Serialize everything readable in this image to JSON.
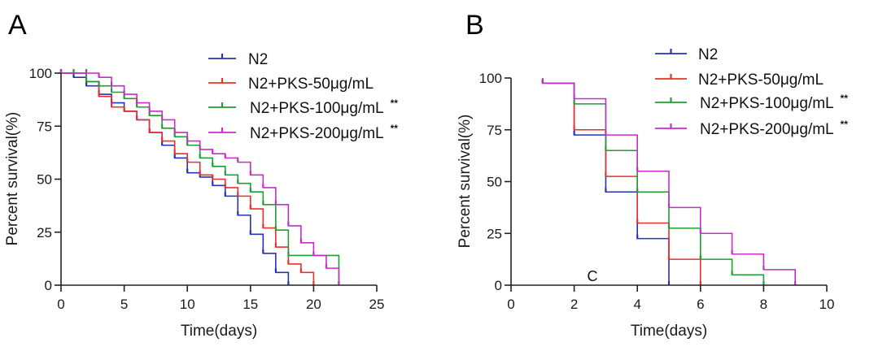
{
  "chart_data": [
    {
      "panel": "A",
      "type": "line",
      "subtype": "kaplan-meier-step",
      "title": "",
      "xlabel": "Time(days)",
      "ylabel": "Percent survival(%)",
      "xlim": [
        0,
        25
      ],
      "ylim": [
        0,
        100
      ],
      "xticks": [
        0,
        5,
        10,
        15,
        20,
        25
      ],
      "yticks": [
        0,
        25,
        50,
        75,
        100
      ],
      "grid": false,
      "legend_position": "top-right",
      "series": [
        {
          "name": "N2",
          "color": "#2633b8",
          "sig": "",
          "x": [
            0,
            1,
            2,
            3,
            4,
            5,
            6,
            7,
            8,
            9,
            10,
            11,
            12,
            13,
            14,
            15,
            16,
            17,
            18
          ],
          "y": [
            100,
            98,
            94,
            90,
            86,
            82,
            78,
            72,
            66,
            60,
            53,
            51,
            47,
            42,
            33,
            24,
            15,
            6,
            0
          ]
        },
        {
          "name": "N2+PKS-50μg/mL",
          "color": "#e8302d",
          "sig": "",
          "x": [
            0,
            2,
            3,
            4,
            5,
            6,
            7,
            8,
            9,
            10,
            11,
            12,
            13,
            14,
            15,
            16,
            17,
            18,
            19,
            20
          ],
          "y": [
            100,
            96,
            89,
            84,
            82,
            78,
            72,
            68,
            62,
            58,
            52,
            50,
            46,
            42,
            36,
            27,
            18,
            10,
            6,
            0
          ]
        },
        {
          "name": "N2+PKS-100μg/mL",
          "color": "#1f9e33",
          "sig": "**",
          "x": [
            0,
            1,
            2,
            3,
            4,
            5,
            6,
            7,
            8,
            9,
            10,
            11,
            12,
            13,
            14,
            15,
            16,
            17,
            18,
            22
          ],
          "y": [
            100,
            100,
            96,
            94,
            91,
            88,
            84,
            80,
            74,
            70,
            66,
            60,
            56,
            52,
            48,
            44,
            38,
            26,
            14,
            0
          ]
        },
        {
          "name": "N2+PKS-200μg/mL",
          "color": "#c62ec8",
          "sig": "**",
          "x": [
            0,
            2,
            3,
            4,
            5,
            6,
            7,
            8,
            9,
            10,
            11,
            12,
            13,
            14,
            15,
            16,
            17,
            18,
            19,
            20,
            21,
            22
          ],
          "y": [
            100,
            100,
            98,
            94,
            90,
            86,
            82,
            78,
            72,
            68,
            64,
            62,
            60,
            58,
            52,
            46,
            38,
            28,
            20,
            14,
            8,
            0
          ]
        }
      ]
    },
    {
      "panel": "B",
      "type": "line",
      "subtype": "kaplan-meier-step",
      "title": "",
      "xlabel": "Time(days)",
      "ylabel": "Percent survival(%)",
      "xlim": [
        0,
        10
      ],
      "ylim": [
        0,
        100
      ],
      "xticks": [
        0,
        2,
        4,
        6,
        8,
        10
      ],
      "yticks": [
        0,
        25,
        50,
        75,
        100
      ],
      "grid": false,
      "legend_position": "top-right",
      "annotation": "C",
      "series": [
        {
          "name": "N2",
          "color": "#2633b8",
          "sig": "",
          "x": [
            1,
            2,
            3,
            4,
            5
          ],
          "y": [
            97.5,
            72.5,
            45,
            22.5,
            0
          ]
        },
        {
          "name": "N2+PKS-50μg/mL",
          "color": "#e8302d",
          "sig": "",
          "x": [
            1,
            2,
            3,
            4,
            5,
            6
          ],
          "y": [
            97.5,
            75,
            52.5,
            30,
            12.5,
            0
          ]
        },
        {
          "name": "N2+PKS-100μg/mL",
          "color": "#1f9e33",
          "sig": "**",
          "x": [
            1,
            2,
            3,
            4,
            5,
            6,
            7,
            8
          ],
          "y": [
            97.5,
            87.5,
            65,
            45,
            27.5,
            12.5,
            5,
            0
          ]
        },
        {
          "name": "N2+PKS-200μg/mL",
          "color": "#c62ec8",
          "sig": "**",
          "x": [
            1,
            2,
            3,
            4,
            5,
            6,
            7,
            8,
            9
          ],
          "y": [
            97.5,
            90,
            72.5,
            55,
            37.5,
            25,
            15,
            7.5,
            0
          ]
        }
      ]
    }
  ]
}
